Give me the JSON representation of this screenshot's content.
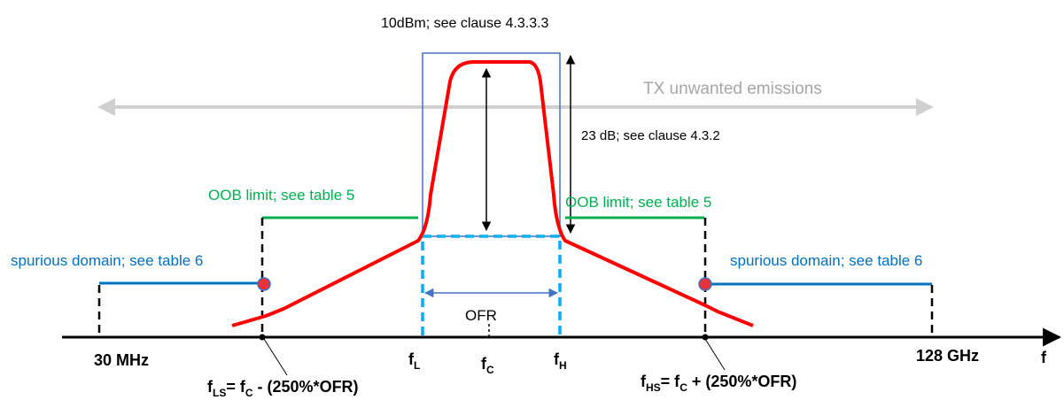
{
  "colors": {
    "axis": "#000000",
    "mask": "#ff0000",
    "ofr_box": "#00b0f0",
    "channel_box": "#4472c4",
    "oob": "#00b050",
    "spurious": "#0070c0",
    "gray_arrow": "#d0d0d0",
    "gray_text": "#a6a6a6",
    "ofr_arrow": "#4472c4"
  },
  "labels": {
    "power_limit": "10dBm; see clause 4.3.3.3",
    "tx_unwanted": "TX unwanted emissions",
    "dynamic_range": "23 dB;  see clause 4.3.2",
    "oob_left": "OOB limit; see table 5",
    "oob_right": "OOB limit; see table 5",
    "spurious_left": "spurious domain; see table 6",
    "spurious_right": "spurious domain; see table 6",
    "ofr": "OFR",
    "freq_start": "30 MHz",
    "freq_end": "128 GHz",
    "f_axis": "f",
    "f_symbol": "f",
    "f_l_sub": "L",
    "f_c_sub": "C",
    "f_h_sub": "H",
    "f_ls_sub": "LS",
    "f_hs_sub": "HS",
    "f_ls_formula_a": "= f",
    "f_ls_formula_b": " - (250%*OFR)",
    "f_hs_formula_a": "= f",
    "f_hs_formula_b": " + (250%*OFR)"
  }
}
